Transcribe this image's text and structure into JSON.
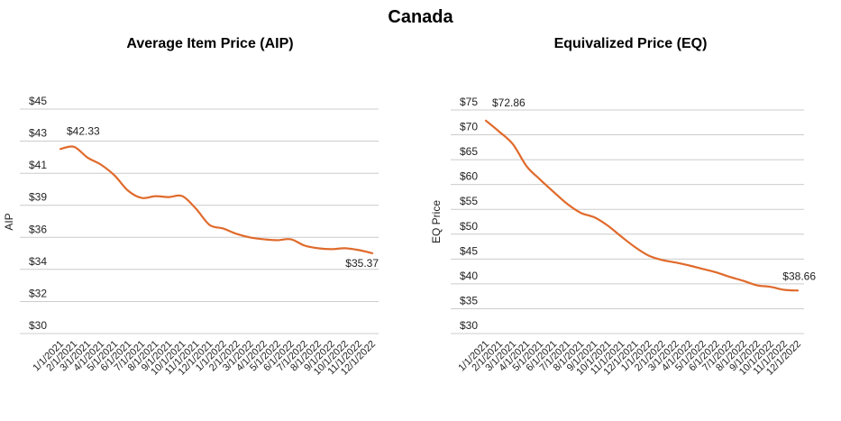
{
  "page_title": "Canada",
  "chart_data": [
    {
      "type": "line",
      "title": "Average Item Price (AIP)",
      "xlabel": "",
      "ylabel": "AIP",
      "ylim": [
        30,
        45
      ],
      "y_ticks": [
        "$30",
        "$32",
        "$34",
        "$36",
        "$39",
        "$41",
        "$43",
        "$45"
      ],
      "y_tick_values": [
        30,
        32.14,
        34.29,
        36.43,
        38.57,
        40.71,
        42.86,
        45
      ],
      "grid": true,
      "legend": "none",
      "line_color": "#e06a2b",
      "x": [
        "1/1/2021",
        "2/1/2021",
        "3/1/2021",
        "4/1/2021",
        "5/1/2021",
        "6/1/2021",
        "7/1/2021",
        "8/1/2021",
        "9/1/2021",
        "10/1/2021",
        "11/1/2021",
        "12/1/2021",
        "1/1/2022",
        "2/1/2022",
        "3/1/2022",
        "4/1/2022",
        "5/1/2022",
        "6/1/2022",
        "7/1/2022",
        "8/1/2022",
        "9/1/2022",
        "10/1/2022",
        "11/1/2022",
        "12/1/2022"
      ],
      "series": [
        {
          "name": "AIP",
          "values": [
            42.33,
            42.48,
            41.76,
            41.28,
            40.56,
            39.54,
            39.06,
            39.18,
            39.12,
            39.18,
            38.34,
            37.26,
            37.02,
            36.66,
            36.42,
            36.3,
            36.24,
            36.3,
            35.88,
            35.7,
            35.64,
            35.7,
            35.58,
            35.37
          ]
        }
      ],
      "annotations": [
        {
          "index": 0,
          "text": "$42.33",
          "position": "above"
        },
        {
          "index": 23,
          "text": "$35.37",
          "position": "below"
        }
      ]
    },
    {
      "type": "line",
      "title": "Equivalized Price (EQ)",
      "xlabel": "",
      "ylabel": "EQ Price",
      "ylim": [
        30,
        75
      ],
      "y_ticks": [
        "$30",
        "$35",
        "$40",
        "$45",
        "$50",
        "$55",
        "$60",
        "$65",
        "$70",
        "$75"
      ],
      "y_tick_values": [
        30,
        35,
        40,
        45,
        50,
        55,
        60,
        65,
        70,
        75
      ],
      "grid": true,
      "legend": "none",
      "line_color": "#e06a2b",
      "x": [
        "1/1/2021",
        "2/1/2021",
        "3/1/2021",
        "4/1/2021",
        "5/1/2021",
        "6/1/2021",
        "7/1/2021",
        "8/1/2021",
        "9/1/2021",
        "10/1/2021",
        "11/1/2021",
        "12/1/2021",
        "1/1/2022",
        "2/1/2022",
        "3/1/2022",
        "4/1/2022",
        "5/1/2022",
        "6/1/2022",
        "7/1/2022",
        "8/1/2022",
        "9/1/2022",
        "10/1/2022",
        "11/1/2022",
        "12/1/2022"
      ],
      "series": [
        {
          "name": "EQ Price",
          "values": [
            72.86,
            70.6,
            68.1,
            63.7,
            61.0,
            58.5,
            56.1,
            54.3,
            53.4,
            51.7,
            49.5,
            47.4,
            45.7,
            44.8,
            44.3,
            43.7,
            43.0,
            42.3,
            41.4,
            40.6,
            39.7,
            39.4,
            38.8,
            38.66
          ]
        }
      ],
      "annotations": [
        {
          "index": 0,
          "text": "$72.86",
          "position": "above"
        },
        {
          "index": 23,
          "text": "$38.66",
          "position": "above"
        }
      ]
    }
  ]
}
